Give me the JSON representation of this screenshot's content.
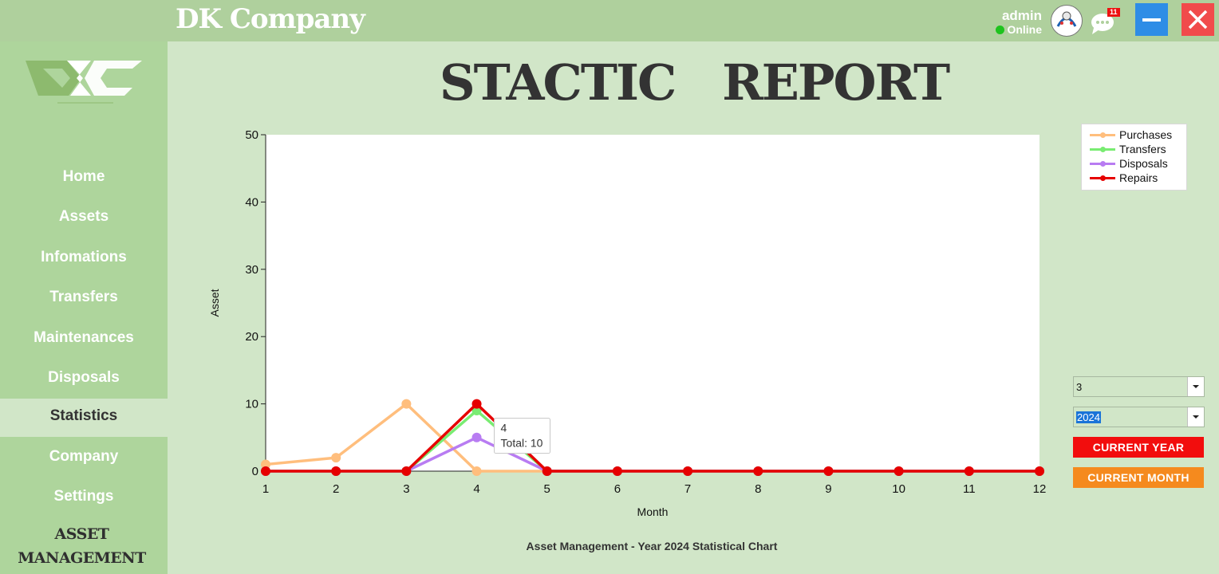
{
  "app": {
    "title": "DK Company"
  },
  "user": {
    "name": "admin",
    "status": "Online",
    "notification_count": "11"
  },
  "sidebar": {
    "items": [
      {
        "label": "Home",
        "active": false
      },
      {
        "label": "Assets",
        "active": false
      },
      {
        "label": "Infomations",
        "active": false
      },
      {
        "label": "Transfers",
        "active": false
      },
      {
        "label": "Maintenances",
        "active": false
      },
      {
        "label": "Disposals",
        "active": false
      },
      {
        "label": "Statistics",
        "active": true
      },
      {
        "label": "Company",
        "active": false
      },
      {
        "label": "Settings",
        "active": false
      }
    ],
    "footer_line1": "ASSET",
    "footer_line2": "MANAGEMENT"
  },
  "report": {
    "title": "STACTIC   REPORT",
    "caption": "Asset Management - Year 2024 Statistical Chart"
  },
  "filters": {
    "month_value": "3",
    "year_value": "2024"
  },
  "buttons": {
    "current_year": "CURRENT YEAR",
    "current_month": "CURRENT MONTH"
  },
  "chart_data": {
    "type": "line",
    "xlabel": "Month",
    "ylabel": "Asset",
    "x": [
      1,
      2,
      3,
      4,
      5,
      6,
      7,
      8,
      9,
      10,
      11,
      12
    ],
    "ylim": [
      0,
      50
    ],
    "yticks": [
      0,
      10,
      20,
      30,
      40,
      50
    ],
    "grid": false,
    "legend_position": "top-right",
    "series": [
      {
        "name": "Purchases",
        "color": "#ffbe7d",
        "values": [
          1,
          2,
          10,
          0,
          0,
          0,
          0,
          0,
          0,
          0,
          0,
          0
        ]
      },
      {
        "name": "Transfers",
        "color": "#79ec72",
        "values": [
          0,
          0,
          0,
          9,
          0,
          0,
          0,
          0,
          0,
          0,
          0,
          0
        ]
      },
      {
        "name": "Disposals",
        "color": "#b87cf2",
        "values": [
          0,
          0,
          0,
          5,
          0,
          0,
          0,
          0,
          0,
          0,
          0,
          0
        ]
      },
      {
        "name": "Repairs",
        "color": "#e60000",
        "values": [
          0,
          0,
          0,
          10,
          0,
          0,
          0,
          0,
          0,
          0,
          0,
          0
        ]
      }
    ],
    "tooltip": {
      "title": "4",
      "text": "Total: 10"
    }
  }
}
